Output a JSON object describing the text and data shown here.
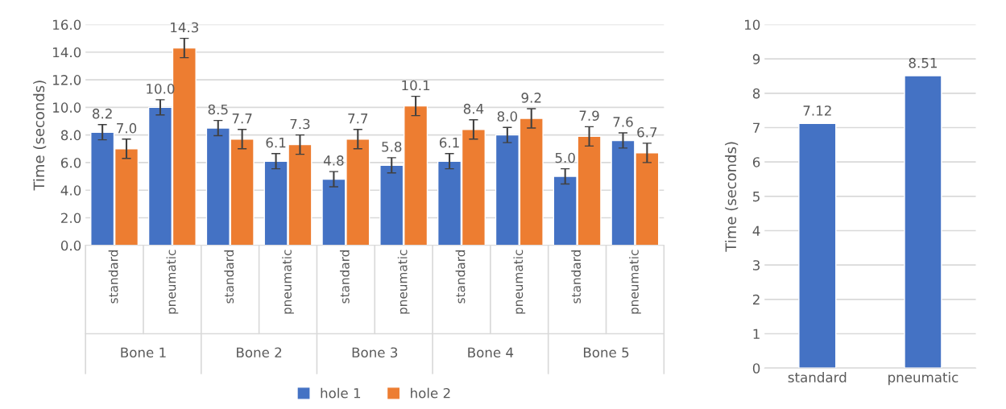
{
  "chart_data": [
    {
      "type": "bar",
      "ylabel": "Time (seconds)",
      "categories": [
        "standard",
        "pneumatic",
        "standard",
        "pneumatic",
        "standard",
        "pneumatic",
        "standard",
        "pneumatic",
        "standard",
        "pneumatic"
      ],
      "annotations": [
        "Bone 1",
        "Bone 2",
        "Bone 3",
        "Bone 4",
        "Bone 5"
      ],
      "series": [
        {
          "name": "hole 1",
          "color": "#4472c4",
          "values": [
            8.2,
            10.0,
            8.5,
            6.1,
            4.8,
            5.8,
            6.1,
            8.0,
            5.0,
            7.6
          ],
          "errors": [
            0.55,
            0.55,
            0.55,
            0.55,
            0.55,
            0.55,
            0.55,
            0.55,
            0.55,
            0.55
          ],
          "value_labels": [
            "8.2",
            "10.0",
            "8.5",
            "6.1",
            "4.8",
            "5.8",
            "6.1",
            "8.0",
            "5.0",
            "7.6"
          ]
        },
        {
          "name": "hole 2",
          "color": "#ed7d31",
          "values": [
            7.0,
            14.3,
            7.7,
            7.3,
            7.7,
            10.1,
            8.4,
            9.2,
            7.9,
            6.7
          ],
          "errors": [
            0.7,
            0.7,
            0.7,
            0.7,
            0.7,
            0.7,
            0.7,
            0.7,
            0.7,
            0.7
          ],
          "value_labels": [
            "7.0",
            "14.3",
            "7.7",
            "7.3",
            "7.7",
            "10.1",
            "8.4",
            "9.2",
            "7.9",
            "6.7"
          ]
        }
      ],
      "ylim": [
        0,
        16
      ],
      "yticks": [
        {
          "value": 0,
          "label": "0.0"
        },
        {
          "value": 2,
          "label": "2.0"
        },
        {
          "value": 4,
          "label": "4.0"
        },
        {
          "value": 6,
          "label": "6.0"
        },
        {
          "value": 8,
          "label": "8.0"
        },
        {
          "value": 10,
          "label": "10.0"
        },
        {
          "value": 12,
          "label": "12.0"
        },
        {
          "value": 14,
          "label": "14.0"
        },
        {
          "value": 16,
          "label": "16.0"
        }
      ],
      "grid": "y",
      "legend": "bottom"
    },
    {
      "type": "bar",
      "ylabel": "Time (seconds)",
      "categories": [
        "standard",
        "pneumatic"
      ],
      "series": [
        {
          "color": "#4472c4",
          "values": [
            7.12,
            8.51
          ]
        }
      ],
      "ylim": [
        0,
        10
      ],
      "yticks": [
        0,
        1,
        2,
        3,
        4,
        5,
        6,
        7,
        8,
        9,
        10
      ],
      "grid": "y",
      "data_labels": true
    }
  ]
}
